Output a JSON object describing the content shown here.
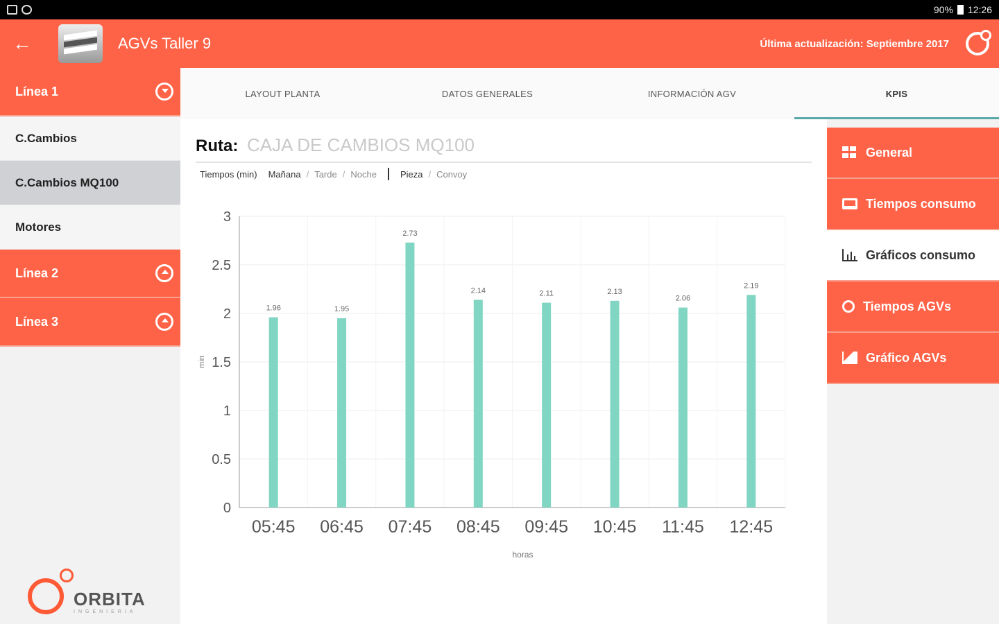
{
  "statusbar": {
    "battery": "90%",
    "time": "12:26"
  },
  "appbar": {
    "title": "AGVs Taller 9",
    "update": "Última actualización: Septiembre 2017"
  },
  "sidebar": {
    "line1": "Línea 1",
    "items": [
      "C.Cambios",
      "C.Cambios MQ100",
      "Motores"
    ],
    "line2": "Línea 2",
    "line3": "Línea 3",
    "brand": "ORBITA",
    "brand_sub": "INGENIERIA"
  },
  "tabs": [
    "LAYOUT PLANTA",
    "DATOS GENERALES",
    "INFORMACIÓN AGV",
    "KPIS"
  ],
  "route": {
    "label": "Ruta:",
    "value": "CAJA DE CAMBIOS MQ100"
  },
  "filters": {
    "tiempos": "Tiempos (min)",
    "manana": "Mañana",
    "tarde": "Tarde",
    "noche": "Noche",
    "pieza": "Pieza",
    "convoy": "Convoy",
    "sep": "/"
  },
  "rmenu": [
    "General",
    "Tiempos consumo",
    "Gráficos consumo",
    "Tiempos AGVs",
    "Gráfico AGVs"
  ],
  "colors": {
    "accent": "#ff6347",
    "bar": "#80d6c3",
    "tab_underline": "#5aa9a6"
  },
  "chart_data": {
    "type": "bar",
    "categories": [
      "05:45",
      "06:45",
      "07:45",
      "08:45",
      "09:45",
      "10:45",
      "11:45",
      "12:45"
    ],
    "values": [
      1.96,
      1.95,
      2.73,
      2.14,
      2.11,
      2.13,
      2.06,
      2.19
    ],
    "value_labels": [
      "1.96",
      "1.95",
      "2.73",
      "2.14",
      "2.11",
      "2.13",
      "2.06",
      "2.19"
    ],
    "yticks": [
      "0",
      "0.5",
      "1",
      "1.5",
      "2",
      "2.5",
      "3"
    ],
    "ylim": [
      0,
      3
    ],
    "xlabel": "horas",
    "ylabel": "min",
    "grid": true
  }
}
